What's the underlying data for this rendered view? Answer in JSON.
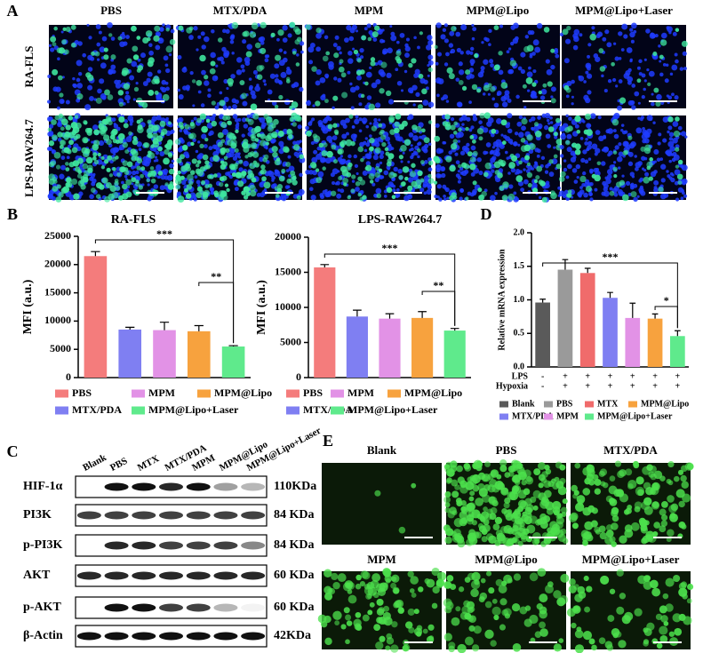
{
  "panel_labels": [
    "A",
    "B",
    "C",
    "D",
    "E"
  ],
  "panel_a": {
    "columns": [
      "PBS",
      "MTX/PDA",
      "MPM",
      "MPM@Lipo",
      "MPM@Lipo+Laser"
    ],
    "rows": [
      "RA-FLS",
      "LPS-RAW264.7"
    ]
  },
  "chart_data": [
    {
      "type": "bar",
      "title": "RA-FLS",
      "y_label": "MFI (a.u.)",
      "ylim": [
        0,
        25000
      ],
      "yticks": [
        0,
        5000,
        10000,
        15000,
        20000,
        25000
      ],
      "series": [
        {
          "name": "PBS",
          "color": "#f47c7c",
          "values": [
            21500
          ],
          "errors": [
            800
          ]
        },
        {
          "name": "MTX/PDA",
          "color": "#7f7ff2",
          "values": [
            8500
          ],
          "errors": [
            400
          ]
        },
        {
          "name": "MPM",
          "color": "#e292e6",
          "values": [
            8400
          ],
          "errors": [
            1400
          ]
        },
        {
          "name": "MPM@Lipo",
          "color": "#f7a23e",
          "values": [
            8200
          ],
          "errors": [
            1000
          ]
        },
        {
          "name": "MPM@Lipo+Laser",
          "color": "#5fea8c",
          "values": [
            5500
          ],
          "errors": [
            150
          ]
        }
      ],
      "annotations": [
        "***",
        "**"
      ]
    },
    {
      "type": "bar",
      "title": "LPS-RAW264.7",
      "y_label": "MFI (a.u.)",
      "ylim": [
        0,
        20000
      ],
      "yticks": [
        0,
        5000,
        10000,
        15000,
        20000
      ],
      "series": [
        {
          "name": "PBS",
          "color": "#f47c7c",
          "values": [
            15700
          ],
          "errors": [
            400
          ]
        },
        {
          "name": "MTX/PDA",
          "color": "#7f7ff2",
          "values": [
            8700
          ],
          "errors": [
            900
          ]
        },
        {
          "name": "MPM",
          "color": "#e292e6",
          "values": [
            8400
          ],
          "errors": [
            700
          ]
        },
        {
          "name": "MPM@Lipo",
          "color": "#f7a23e",
          "values": [
            8500
          ],
          "errors": [
            900
          ]
        },
        {
          "name": "MPM@Lipo+Laser",
          "color": "#5fea8c",
          "values": [
            6700
          ],
          "errors": [
            300
          ]
        }
      ],
      "annotations": [
        "***",
        "**"
      ]
    },
    {
      "type": "bar",
      "y_label": "Relative mRNA expression",
      "ylim": [
        0,
        2
      ],
      "yticks": [
        {
          "value": 0,
          "label": "0.0"
        },
        {
          "value": 0.5,
          "label": "0.5"
        },
        {
          "value": 1,
          "label": "1.0"
        },
        {
          "value": 1.5,
          "label": "1.5"
        },
        {
          "value": 2,
          "label": "2.0"
        }
      ],
      "series": [
        {
          "name": "Blank",
          "color": "#5a5a5a",
          "values": [
            0.96
          ],
          "errors": [
            0.05
          ]
        },
        {
          "name": "PBS",
          "color": "#9a9a9a",
          "values": [
            1.45
          ],
          "errors": [
            0.15
          ]
        },
        {
          "name": "MTX",
          "color": "#f06b6b",
          "values": [
            1.4
          ],
          "errors": [
            0.07
          ]
        },
        {
          "name": "MTX/PDA",
          "color": "#7f7ff2",
          "values": [
            1.03
          ],
          "errors": [
            0.08
          ]
        },
        {
          "name": "MPM",
          "color": "#e292e6",
          "values": [
            0.73
          ],
          "errors": [
            0.22
          ]
        },
        {
          "name": "MPM@Lipo",
          "color": "#f7a23e",
          "values": [
            0.72
          ],
          "errors": [
            0.07
          ]
        },
        {
          "name": "MPM@Lipo+Laser",
          "color": "#5fea8c",
          "values": [
            0.46
          ],
          "errors": [
            0.08
          ]
        }
      ],
      "annotations": [
        "***",
        "*"
      ],
      "conditions": [
        {
          "label": "LPS",
          "signs": [
            "-",
            "+",
            "+",
            "+",
            "+",
            "+",
            "+"
          ]
        },
        {
          "label": "Hypoxia",
          "signs": [
            "-",
            "+",
            "+",
            "+",
            "+",
            "+",
            "+"
          ]
        }
      ]
    }
  ],
  "panel_c": {
    "lanes": [
      "Blank",
      "PBS",
      "MTX",
      "MTX/PDA",
      "MPM",
      "MPM@Lipo",
      "MPM@Lipo+Laser"
    ],
    "rows": [
      {
        "protein": "HIF-1α",
        "size": "110KDa"
      },
      {
        "protein": "PI3K",
        "size": "84 KDa"
      },
      {
        "protein": "p-PI3K",
        "size": "84 KDa"
      },
      {
        "protein": "AKT",
        "size": "60 KDa"
      },
      {
        "protein": "p-AKT",
        "size": "60 KDa"
      },
      {
        "protein": "β-Actin",
        "size": "42KDa"
      }
    ]
  },
  "panel_e": {
    "labels": [
      "Blank",
      "PBS",
      "MTX/PDA",
      "MPM",
      "MPM@Lipo",
      "MPM@Lipo+Laser"
    ]
  }
}
